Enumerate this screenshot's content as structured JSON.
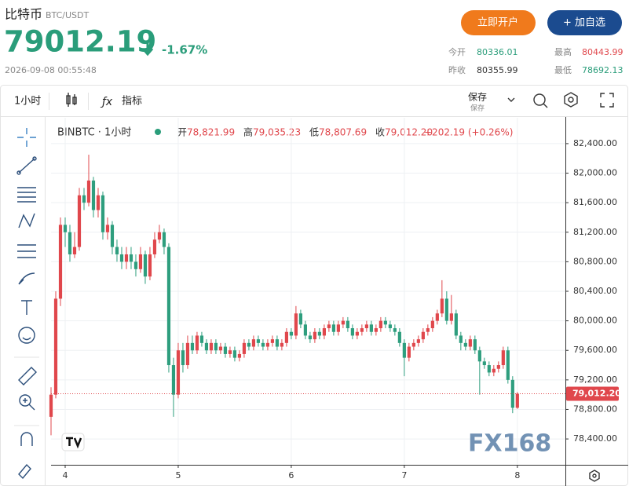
{
  "header": {
    "name": "比特币",
    "symbol": "BTC/USDT",
    "price": "79012.19",
    "change": "-1.67%",
    "time": "2026-09-08 00:55:48",
    "buttons": [
      "立即开户",
      "+ 加自选"
    ],
    "stats": [
      {
        "label": "今开",
        "value": "80336.01"
      },
      {
        "label": "最高",
        "value": "80443.99"
      },
      {
        "label": "昨收",
        "value": "80355.99"
      },
      {
        "label": "最低",
        "value": "78692.13"
      }
    ]
  },
  "toolbar": {
    "interval": "1小时",
    "indicators": "指标",
    "save": "保存",
    "save_sub": "保存"
  },
  "watermark": "FX168",
  "chart_data": {
    "type": "candlestick",
    "legend": {
      "symbol": "BINBTC · 1小时",
      "items": [
        {
          "label": "开",
          "value": "78,821.99"
        },
        {
          "label": "高",
          "value": "79,035.23"
        },
        {
          "label": "低",
          "value": "78,807.69"
        },
        {
          "label": "收",
          "value": "79,012.20"
        }
      ],
      "change": "+202.19 (+0.26%)"
    },
    "up_color": "#e0474c",
    "down_color": "#2e9e7e",
    "x": [
      93,
      94,
      95,
      96,
      97,
      98,
      99,
      100,
      101,
      102,
      103,
      104,
      105,
      106,
      107,
      108,
      109,
      110,
      111,
      112,
      113,
      114,
      115,
      116,
      117,
      118,
      119,
      120,
      121,
      122,
      123,
      124,
      125,
      126,
      127,
      128,
      129,
      130,
      131,
      132,
      133,
      134,
      135,
      136,
      137,
      138,
      139,
      140,
      141,
      142,
      143,
      144,
      145,
      146,
      147,
      148,
      149,
      150,
      151,
      152,
      153,
      154,
      155,
      156,
      157,
      158,
      159,
      160,
      161,
      162,
      163,
      164,
      165,
      166,
      167,
      168,
      169,
      170,
      171,
      172,
      173,
      174,
      175,
      176,
      177,
      178,
      179,
      180,
      181,
      182,
      183,
      184,
      185,
      186,
      187,
      188,
      189,
      190,
      191,
      192
    ],
    "open": [
      78700,
      79000,
      80300,
      81300,
      81200,
      80900,
      81000,
      81700,
      81600,
      81900,
      81500,
      81700,
      81200,
      81300,
      81000,
      80900,
      80800,
      80900,
      80800,
      80700,
      80900,
      80600,
      80900,
      81100,
      81200,
      81000,
      79400,
      79000,
      79600,
      79400,
      79700,
      79600,
      79800,
      79700,
      79600,
      79700,
      79600,
      79650,
      79550,
      79600,
      79500,
      79550,
      79700,
      79650,
      79750,
      79700,
      79650,
      79700,
      79750,
      79650,
      79700,
      79850,
      79800,
      80100,
      79950,
      79800,
      79750,
      79850,
      79800,
      79900,
      79950,
      79850,
      79950,
      80000,
      79900,
      79800,
      79850,
      79900,
      79950,
      79850,
      79900,
      80000,
      79950,
      79900,
      79850,
      79700,
      79500,
      79650,
      79700,
      79750,
      79850,
      79900,
      80000,
      80100,
      80300,
      80000,
      80100,
      79800,
      79700,
      79650,
      79750,
      79600,
      79450,
      79400,
      79300,
      79350,
      79400,
      79600,
      79200,
      78821.99
    ],
    "high": [
      79100,
      80400,
      81400,
      81400,
      81300,
      81200,
      81800,
      81800,
      82250,
      81950,
      81800,
      81750,
      81400,
      81350,
      81100,
      81000,
      81000,
      81000,
      80900,
      81000,
      80950,
      81000,
      81200,
      81300,
      81250,
      81050,
      79500,
      79700,
      79700,
      79800,
      79800,
      79850,
      79850,
      79750,
      79750,
      79750,
      79700,
      79700,
      79650,
      79650,
      79600,
      79750,
      79750,
      79800,
      79800,
      79750,
      79750,
      79800,
      79800,
      79750,
      79900,
      79900,
      80200,
      80150,
      80000,
      79850,
      79900,
      79900,
      79950,
      80000,
      80000,
      80000,
      80050,
      80050,
      79950,
      79900,
      79950,
      80000,
      80000,
      79950,
      80050,
      80050,
      80000,
      79950,
      79900,
      79750,
      79700,
      79750,
      79800,
      79900,
      79950,
      80050,
      80150,
      80550,
      80400,
      80350,
      80150,
      79850,
      79750,
      79800,
      79800,
      79650,
      79500,
      79450,
      79400,
      79450,
      79650,
      79650,
      79250,
      79035.23
    ],
    "low": [
      78450,
      78950,
      80200,
      81000,
      80800,
      80850,
      80950,
      81500,
      81550,
      81400,
      81400,
      81100,
      81100,
      80900,
      80800,
      80700,
      80700,
      80700,
      80600,
      80650,
      80500,
      80550,
      80850,
      81050,
      80900,
      79300,
      78700,
      78950,
      79300,
      79350,
      79550,
      79550,
      79650,
      79550,
      79550,
      79550,
      79550,
      79500,
      79500,
      79450,
      79450,
      79500,
      79600,
      79600,
      79650,
      79600,
      79600,
      79650,
      79600,
      79600,
      79650,
      79750,
      79750,
      79900,
      79750,
      79700,
      79700,
      79750,
      79750,
      79850,
      79800,
      79800,
      79900,
      79850,
      79750,
      79750,
      79800,
      79850,
      79800,
      79800,
      79850,
      79900,
      79850,
      79800,
      79650,
      79250,
      79450,
      79600,
      79650,
      79700,
      79800,
      79850,
      79950,
      80050,
      79950,
      79950,
      79750,
      79600,
      79600,
      79600,
      79550,
      79000,
      79350,
      79250,
      79250,
      79300,
      79350,
      79150,
      78750,
      78807.69
    ],
    "close": [
      79000,
      80300,
      81300,
      81200,
      80900,
      81000,
      81700,
      81600,
      81900,
      81500,
      81700,
      81200,
      81300,
      81000,
      80900,
      80800,
      80900,
      80800,
      80700,
      80900,
      80600,
      80900,
      81100,
      81200,
      81000,
      79400,
      79000,
      79600,
      79400,
      79700,
      79600,
      79800,
      79700,
      79600,
      79700,
      79600,
      79650,
      79550,
      79600,
      79500,
      79550,
      79700,
      79650,
      79750,
      79700,
      79650,
      79700,
      79750,
      79650,
      79700,
      79850,
      79800,
      80100,
      79950,
      79800,
      79750,
      79850,
      79800,
      79900,
      79950,
      79850,
      79950,
      80000,
      79900,
      79800,
      79850,
      79900,
      79950,
      79850,
      79900,
      80000,
      79950,
      79900,
      79850,
      79700,
      79500,
      79650,
      79700,
      79750,
      79850,
      79900,
      80000,
      80100,
      80300,
      80000,
      80100,
      79800,
      79700,
      79650,
      79750,
      79600,
      79450,
      79400,
      79300,
      79350,
      79400,
      79600,
      79200,
      78821.99,
      79012.2
    ],
    "xlim": [
      93,
      202.2
    ],
    "xticks": [
      {
        "value": 96,
        "label": "4"
      },
      {
        "value": 120,
        "label": "5"
      },
      {
        "value": 144,
        "label": "6"
      },
      {
        "value": 168,
        "label": "7"
      },
      {
        "value": 192,
        "label": "8"
      }
    ],
    "ylim": [
      78050,
      82750
    ],
    "yticks": [
      {
        "value": 78400,
        "label": "78,400.00"
      },
      {
        "value": 78800,
        "label": "78,800.00"
      },
      {
        "value": 79200,
        "label": "79,200.00"
      },
      {
        "value": 79600,
        "label": "79,600.00"
      },
      {
        "value": 80000,
        "label": "80,000.00"
      },
      {
        "value": 80400,
        "label": "80,400.00"
      },
      {
        "value": 80800,
        "label": "80,800.00"
      },
      {
        "value": 81200,
        "label": "81,200.00"
      },
      {
        "value": 81600,
        "label": "81,600.00"
      },
      {
        "value": 82000,
        "label": "82,000.00"
      },
      {
        "value": 82400,
        "label": "82,400.00"
      }
    ],
    "grid": true,
    "last_price": {
      "value": 79012.2,
      "label": "79,012.20"
    }
  }
}
